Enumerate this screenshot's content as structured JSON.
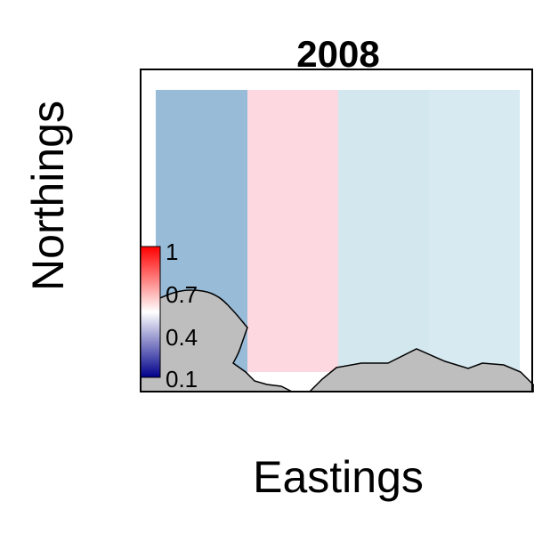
{
  "chart_data": {
    "type": "heatmap",
    "title": "2008",
    "xlabel": "Eastings",
    "ylabel": "Northings",
    "cells": [
      {
        "column": 1,
        "value": 0.33,
        "color": "#98BBD8"
      },
      {
        "column": 2,
        "value": 0.57,
        "color": "#FDD8E0"
      },
      {
        "column": 3,
        "value": 0.46,
        "color": "#D3E7EF"
      },
      {
        "column": 4,
        "value": 0.47,
        "color": "#D7EAF1"
      }
    ],
    "colorbar": {
      "ticks": [
        "1",
        "0.7",
        "0.4",
        "0.1"
      ],
      "tick_values": [
        1,
        0.7,
        0.4,
        0.1
      ],
      "range": [
        0.1,
        1
      ],
      "colors": {
        "high": "#ff0000",
        "mid": "#ffffff",
        "low": "#00008b"
      }
    },
    "land_color": "#bebebe",
    "grid": false
  }
}
